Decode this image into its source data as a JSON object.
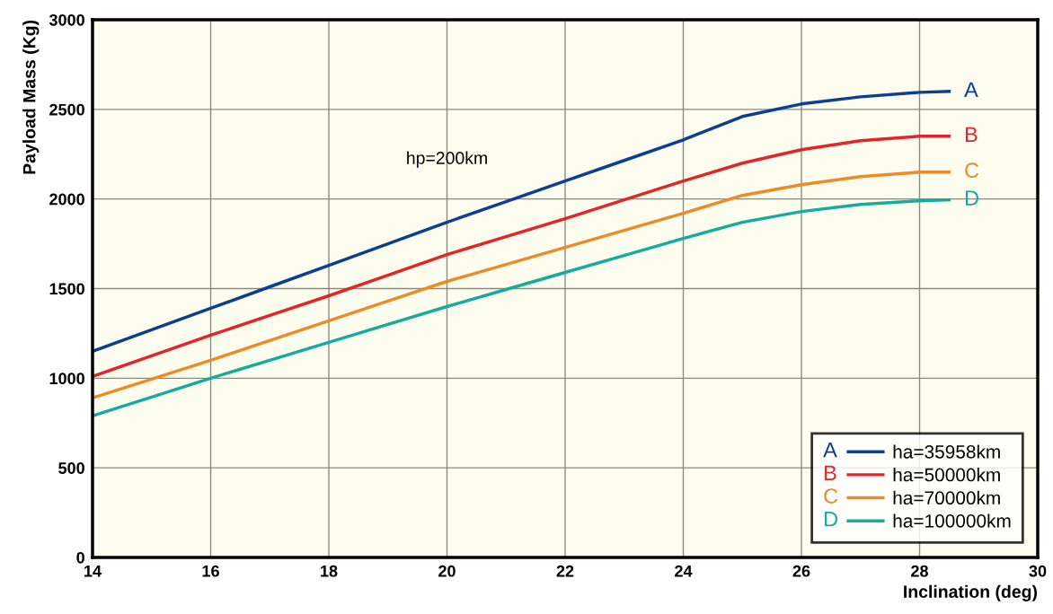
{
  "chart_data": {
    "type": "line",
    "xlabel": "Inclination (deg)",
    "ylabel": "Payload Mass (Kg)",
    "x": [
      14,
      15,
      16,
      17,
      18,
      19,
      20,
      21,
      22,
      23,
      24,
      25,
      26,
      27,
      28,
      28.5
    ],
    "series": [
      {
        "name": "ha=35958km",
        "color": "#0f3d91",
        "values": [
          1150,
          1270,
          1390,
          1510,
          1630,
          1750,
          1870,
          1985,
          2100,
          2215,
          2330,
          2460,
          2530,
          2570,
          2595,
          2600
        ]
      },
      {
        "name": "ha=50000km",
        "color": "#e0262b",
        "values": [
          1010,
          1125,
          1240,
          1350,
          1460,
          1575,
          1690,
          1790,
          1890,
          1995,
          2100,
          2200,
          2275,
          2325,
          2350,
          2350
        ]
      },
      {
        "name": "ha=70000km",
        "color": "#ee8a2a",
        "values": [
          890,
          995,
          1100,
          1210,
          1320,
          1430,
          1540,
          1635,
          1730,
          1825,
          1920,
          2020,
          2080,
          2125,
          2150,
          2150
        ]
      },
      {
        "name": "ha=100000km",
        "color": "#17ab9a",
        "values": [
          790,
          895,
          1000,
          1100,
          1200,
          1300,
          1400,
          1495,
          1590,
          1685,
          1780,
          1870,
          1930,
          1970,
          1990,
          1995
        ]
      }
    ],
    "annotations": [
      "hp=200km",
      "A",
      "B",
      "C",
      "D"
    ],
    "xlim": [
      14,
      30
    ],
    "xticks": [
      14,
      16,
      18,
      20,
      22,
      24,
      26,
      28,
      30
    ],
    "ylim": [
      0,
      3000
    ],
    "yticks": [
      0,
      500,
      1000,
      1500,
      2000,
      2500,
      3000
    ],
    "grid": true,
    "legend": "bottom right",
    "marker": "none",
    "line_style": "solid"
  }
}
